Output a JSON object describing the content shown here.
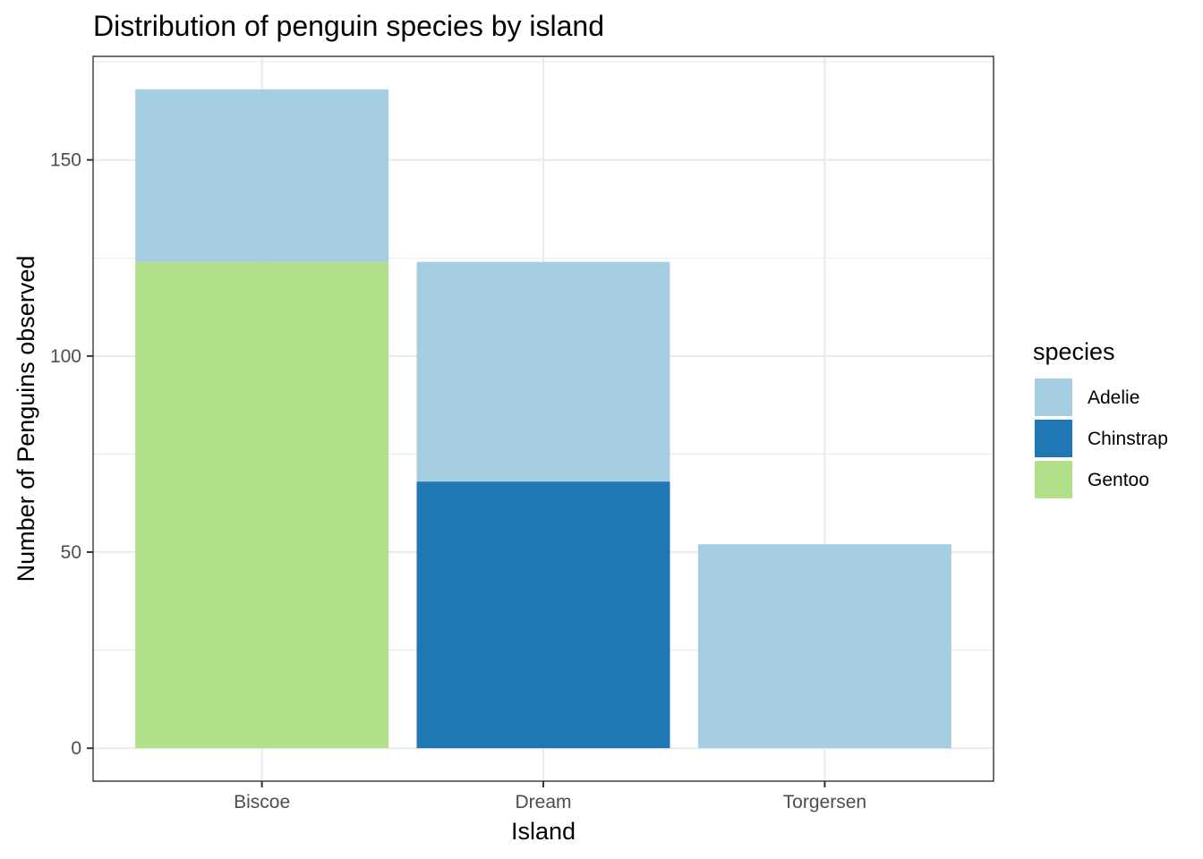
{
  "chart_data": {
    "type": "bar",
    "stacked": true,
    "title": "Distribution of penguin species by island",
    "xlabel": "Island",
    "ylabel": "Number of Penguins observed",
    "categories": [
      "Biscoe",
      "Dream",
      "Torgersen"
    ],
    "series": [
      {
        "name": "Chinstrap",
        "color": "#1F78B4",
        "values": [
          0,
          68,
          0
        ]
      },
      {
        "name": "Gentoo",
        "color": "#B2DF8A",
        "values": [
          124,
          0,
          0
        ]
      },
      {
        "name": "Adelie",
        "color": "#A6CEE3",
        "values": [
          44,
          56,
          52
        ]
      }
    ],
    "yticks": [
      0,
      50,
      100,
      150
    ],
    "ylim": [
      -8.4,
      176.4
    ],
    "grid": true,
    "legend": {
      "title": "species",
      "position": "right",
      "entries": [
        {
          "label": "Adelie",
          "color": "#A6CEE3"
        },
        {
          "label": "Chinstrap",
          "color": "#1F78B4"
        },
        {
          "label": "Gentoo",
          "color": "#B2DF8A"
        }
      ]
    }
  }
}
